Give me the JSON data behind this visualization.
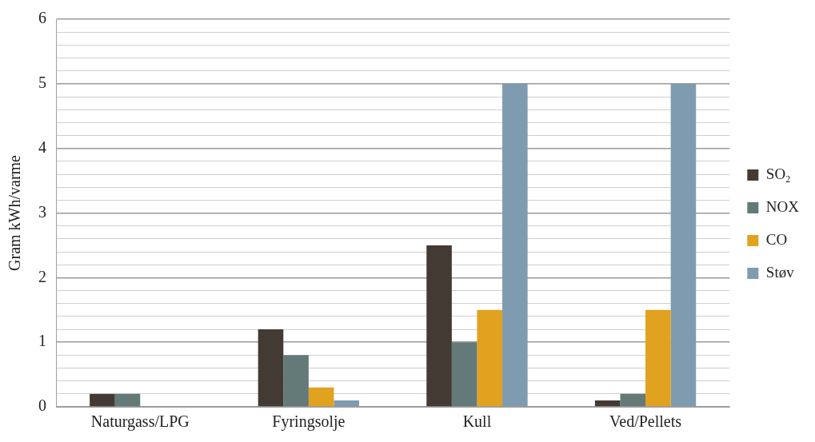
{
  "chart_data": {
    "type": "bar",
    "ylabel": "Gram kWh/varme",
    "categories": [
      "Naturgass/LPG",
      "Fyringsolje",
      "Kull",
      "Ved/Pellets"
    ],
    "series": [
      {
        "name": "SO₂",
        "color": "#433a34",
        "values": [
          0.2,
          1.2,
          2.5,
          0.1
        ]
      },
      {
        "name": "NOX",
        "color": "#637a78",
        "values": [
          0.2,
          0.8,
          1.0,
          0.2
        ]
      },
      {
        "name": "CO",
        "color": "#e0a21f",
        "values": [
          0,
          0.3,
          1.5,
          1.5
        ]
      },
      {
        "name": "Støv",
        "color": "#7f9bb0",
        "values": [
          0,
          0.1,
          5,
          5
        ]
      }
    ],
    "ylim": [
      0,
      6
    ],
    "yticks": [
      0,
      {
        "value": 0.2,
        "label": null
      },
      {
        "value": 0.4,
        "label": null
      },
      {
        "value": 0.6,
        "label": null
      },
      {
        "value": 0.8,
        "label": null
      },
      1,
      {
        "value": 1.2,
        "label": null
      },
      {
        "value": 1.4,
        "label": null
      },
      {
        "value": 1.6,
        "label": null
      },
      {
        "value": 1.8,
        "label": null
      },
      2,
      {
        "value": 2.2,
        "label": null
      },
      {
        "value": 2.4,
        "label": null
      },
      {
        "value": 2.6,
        "label": null
      },
      {
        "value": 2.8,
        "label": null
      },
      3,
      {
        "value": 3.2,
        "label": null
      },
      {
        "value": 3.4,
        "label": null
      },
      {
        "value": 3.6,
        "label": null
      },
      {
        "value": 3.8,
        "label": null
      },
      4,
      {
        "value": 4.2,
        "label": null
      },
      {
        "value": 4.4,
        "label": null
      },
      {
        "value": 4.6,
        "label": null
      },
      {
        "value": 4.8,
        "label": null
      },
      5,
      {
        "value": 5.2,
        "label": null
      },
      {
        "value": 5.4,
        "label": null
      },
      {
        "value": 5.6,
        "label": null
      },
      {
        "value": 5.8,
        "label": null
      },
      6
    ],
    "grid": "y",
    "legend": "right"
  }
}
